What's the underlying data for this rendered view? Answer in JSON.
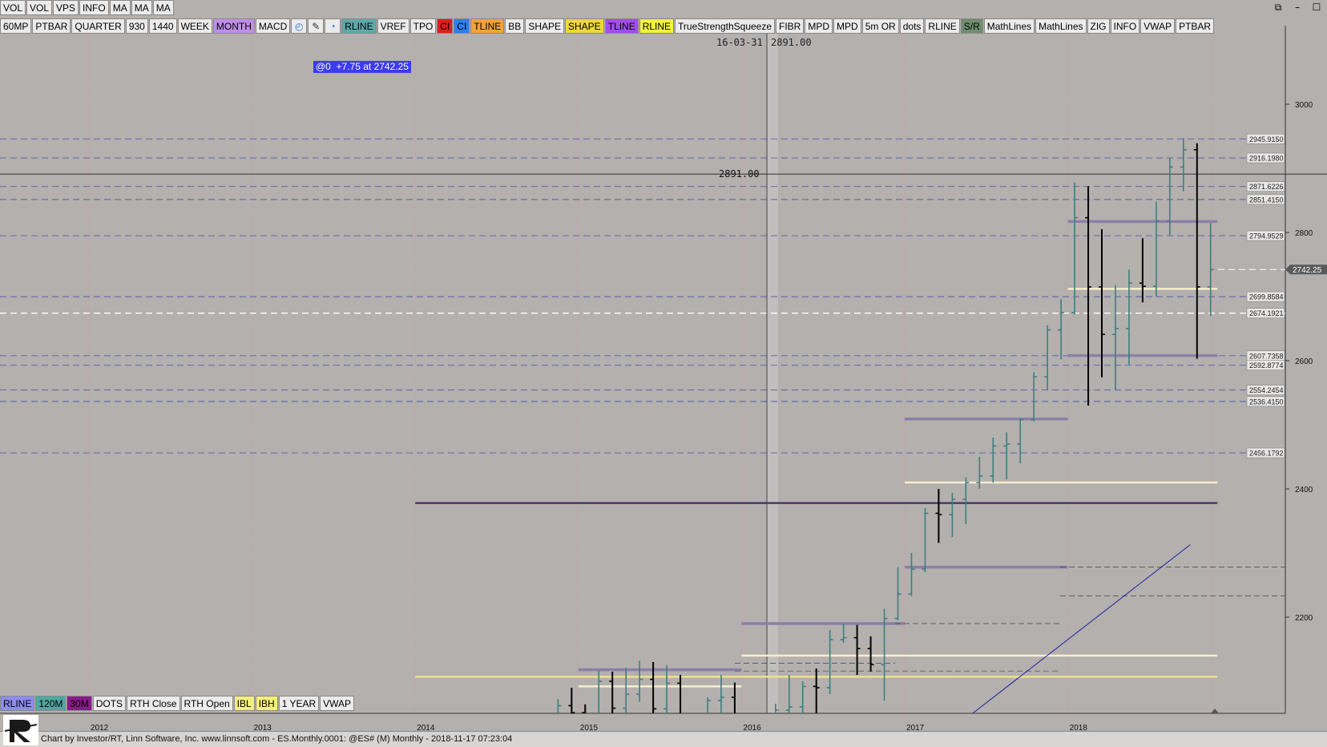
{
  "window": {
    "controls": [
      "restore-icon",
      "minimize-icon",
      "maximize-icon"
    ]
  },
  "toolbar_top": [
    "VOL",
    "VOL",
    "VPS",
    "INFO",
    "MA",
    "MA",
    "MA"
  ],
  "toolbar_row": [
    {
      "label": "60MP",
      "bg": "#ebebeb",
      "fg": "#000"
    },
    {
      "label": "PTBAR",
      "bg": "#ebebeb",
      "fg": "#000"
    },
    {
      "label": "QUARTER",
      "bg": "#ebebeb",
      "fg": "#000"
    },
    {
      "label": "930",
      "bg": "#ebebeb",
      "fg": "#000"
    },
    {
      "label": "1440",
      "bg": "#ebebeb",
      "fg": "#000"
    },
    {
      "label": "WEEK",
      "bg": "#ebebeb",
      "fg": "#000"
    },
    {
      "label": "MONTH",
      "bg": "#c08ee8",
      "fg": "#000"
    },
    {
      "label": "MACD",
      "bg": "#ebebeb",
      "fg": "#000"
    },
    {
      "label": "",
      "icon": "clock-icon",
      "bg": "#ebebeb",
      "fg": "#1e6fd0"
    },
    {
      "label": "",
      "icon": "pencil-icon",
      "bg": "#ebebeb",
      "fg": "#333"
    },
    {
      "label": "",
      "icon": "refresh-icon",
      "bg": "#ebebeb",
      "fg": "#1e6fd0"
    },
    {
      "label": "RLINE",
      "bg": "#5fa8a8",
      "fg": "#000"
    },
    {
      "label": "VREF",
      "bg": "#ebebeb",
      "fg": "#000"
    },
    {
      "label": "TPO",
      "bg": "#ebebeb",
      "fg": "#000"
    },
    {
      "label": "CI",
      "bg": "#e31b1b",
      "fg": "#000"
    },
    {
      "label": "CI",
      "bg": "#2d7ff0",
      "fg": "#000"
    },
    {
      "label": "TLINE",
      "bg": "#f2a43a",
      "fg": "#000"
    },
    {
      "label": "BB",
      "bg": "#ebebeb",
      "fg": "#000"
    },
    {
      "label": "SHAPE",
      "bg": "#ebebeb",
      "fg": "#000"
    },
    {
      "label": "SHAPE",
      "bg": "#f1d73c",
      "fg": "#000"
    },
    {
      "label": "TLINE",
      "bg": "#a24cf0",
      "fg": "#000"
    },
    {
      "label": "RLINE",
      "bg": "#f4f43c",
      "fg": "#000"
    },
    {
      "label": "TrueStrengthSqueeze",
      "bg": "#ebebeb",
      "fg": "#000"
    },
    {
      "label": "FIBR",
      "bg": "#ebebeb",
      "fg": "#000"
    },
    {
      "label": "MPD",
      "bg": "#ebebeb",
      "fg": "#000"
    },
    {
      "label": "MPD",
      "bg": "#ebebeb",
      "fg": "#000"
    },
    {
      "label": "5m OR",
      "bg": "#ebebeb",
      "fg": "#000"
    },
    {
      "label": "dots",
      "bg": "#ebebeb",
      "fg": "#000"
    },
    {
      "label": "RLINE",
      "bg": "#ebebeb",
      "fg": "#000"
    },
    {
      "label": "S/R",
      "bg": "#6f8e6f",
      "fg": "#000"
    },
    {
      "label": "MathLines",
      "bg": "#ebebeb",
      "fg": "#000"
    },
    {
      "label": "MathLines",
      "bg": "#ebebeb",
      "fg": "#000"
    },
    {
      "label": "ZIG",
      "bg": "#ebebeb",
      "fg": "#000"
    },
    {
      "label": "INFO",
      "bg": "#ebebeb",
      "fg": "#000"
    },
    {
      "label": "VWAP",
      "bg": "#ebebeb",
      "fg": "#000"
    },
    {
      "label": "PTBAR",
      "bg": "#ebebeb",
      "fg": "#000"
    }
  ],
  "toolbar_bottom": [
    {
      "label": "RLINE",
      "bg": "#8c8cf0",
      "fg": "#000"
    },
    {
      "label": "120M",
      "bg": "#4fa8a0",
      "fg": "#000"
    },
    {
      "label": "30M",
      "bg": "#8a1a8a",
      "fg": "#000"
    },
    {
      "label": "DOTS",
      "bg": "#ebebeb",
      "fg": "#000"
    },
    {
      "label": "RTH Close",
      "bg": "#ebebeb",
      "fg": "#000"
    },
    {
      "label": "RTH Open",
      "bg": "#ebebeb",
      "fg": "#000"
    },
    {
      "label": "IBL",
      "bg": "#f4f07c",
      "fg": "#000"
    },
    {
      "label": "IBH",
      "bg": "#f4f07c",
      "fg": "#000"
    },
    {
      "label": "1 YEAR",
      "bg": "#ebebeb",
      "fg": "#000"
    },
    {
      "label": "VWAP",
      "bg": "#ebebeb",
      "fg": "#000"
    }
  ],
  "badge": "@0  +7.75 at 2742.25",
  "crosshair": {
    "date": "16-03-31",
    "price": "2891.00",
    "price_label": "2891.00"
  },
  "footer": "Chart by Investor/RT, Linn Software, Inc. www.linnsoft.com - ES.Monthly.0001: @ES# (M) Monthly - 2018-11-17 07:23:04",
  "chart_data": {
    "type": "bar",
    "symbol": "@ES# (M) Monthly",
    "ylim": [
      2050,
      3110
    ],
    "y_ticks": [
      2200,
      2400,
      2600,
      2800,
      3000
    ],
    "x_ticks": [
      "2012",
      "2013",
      "2014",
      "2015",
      "2016",
      "2017",
      "2018"
    ],
    "last_price": "2742.25",
    "level_labels": [
      "2945.9150",
      "2916.1980",
      "2871.6226",
      "2851.4150",
      "2794.9529",
      "2699.8584",
      "2674.1921",
      "2607.7358",
      "2592.8774",
      "2554.2454",
      "2536.4150",
      "2456.1792"
    ],
    "colors": {
      "up_bar": "#3f7f7f",
      "down_bar": "#000000",
      "purple_level": "#8b7fa8",
      "cream_level": "#f4ecc4",
      "yellow_level": "#f0e08c",
      "dark_line": "#4a3a6a",
      "trend_line": "#2020a0"
    },
    "bars": [
      {
        "date": "2014-11",
        "open": 2015,
        "high": 2072,
        "low": 1980,
        "close": 2062
      },
      {
        "date": "2014-12",
        "open": 2062,
        "high": 2090,
        "low": 1970,
        "close": 2051
      },
      {
        "date": "2015-01",
        "open": 2051,
        "high": 2064,
        "low": 1981,
        "close": 1991
      },
      {
        "date": "2015-02",
        "open": 1991,
        "high": 2117,
        "low": 1981,
        "close": 2100
      },
      {
        "date": "2015-03",
        "open": 2100,
        "high": 2115,
        "low": 2040,
        "close": 2058
      },
      {
        "date": "2015-04",
        "open": 2058,
        "high": 2121,
        "low": 2040,
        "close": 2080
      },
      {
        "date": "2015-05",
        "open": 2080,
        "high": 2132,
        "low": 2068,
        "close": 2103
      },
      {
        "date": "2015-06",
        "open": 2103,
        "high": 2130,
        "low": 2050,
        "close": 2057
      },
      {
        "date": "2015-07",
        "open": 2057,
        "high": 2125,
        "low": 2040,
        "close": 2097
      },
      {
        "date": "2015-08",
        "open": 2097,
        "high": 2110,
        "low": 1860,
        "close": 1968
      },
      {
        "date": "2015-09",
        "open": 1968,
        "high": 2005,
        "low": 1860,
        "close": 1908
      },
      {
        "date": "2015-10",
        "open": 1908,
        "high": 2075,
        "low": 1880,
        "close": 2070
      },
      {
        "date": "2015-11",
        "open": 2070,
        "high": 2110,
        "low": 2040,
        "close": 2075
      },
      {
        "date": "2015-12",
        "open": 2075,
        "high": 2098,
        "low": 1990,
        "close": 2035
      },
      {
        "date": "2016-01",
        "open": 2035,
        "high": 2040,
        "low": 1805,
        "close": 1935
      },
      {
        "date": "2016-02",
        "open": 1935,
        "high": 1960,
        "low": 1800,
        "close": 1930
      },
      {
        "date": "2016-03",
        "open": 1930,
        "high": 2065,
        "low": 1925,
        "close": 2055
      },
      {
        "date": "2016-04",
        "open": 2055,
        "high": 2110,
        "low": 2030,
        "close": 2060
      },
      {
        "date": "2016-05",
        "open": 2060,
        "high": 2100,
        "low": 2025,
        "close": 2092
      },
      {
        "date": "2016-06",
        "open": 2092,
        "high": 2120,
        "low": 1990,
        "close": 2090
      },
      {
        "date": "2016-07",
        "open": 2090,
        "high": 2180,
        "low": 2080,
        "close": 2165
      },
      {
        "date": "2016-08",
        "open": 2165,
        "high": 2190,
        "low": 2160,
        "close": 2168
      },
      {
        "date": "2016-09",
        "open": 2168,
        "high": 2188,
        "low": 2110,
        "close": 2151
      },
      {
        "date": "2016-10",
        "open": 2151,
        "high": 2170,
        "low": 2115,
        "close": 2126
      },
      {
        "date": "2016-11",
        "open": 2126,
        "high": 2213,
        "low": 2070,
        "close": 2198
      },
      {
        "date": "2016-12",
        "open": 2198,
        "high": 2278,
        "low": 2195,
        "close": 2236
      },
      {
        "date": "2017-01",
        "open": 2236,
        "high": 2300,
        "low": 2233,
        "close": 2275
      },
      {
        "date": "2017-02",
        "open": 2275,
        "high": 2370,
        "low": 2270,
        "close": 2362
      },
      {
        "date": "2017-03",
        "open": 2362,
        "high": 2400,
        "low": 2316,
        "close": 2360
      },
      {
        "date": "2017-04",
        "open": 2360,
        "high": 2394,
        "low": 2325,
        "close": 2384
      },
      {
        "date": "2017-05",
        "open": 2384,
        "high": 2418,
        "low": 2345,
        "close": 2410
      },
      {
        "date": "2017-06",
        "open": 2410,
        "high": 2450,
        "low": 2400,
        "close": 2420
      },
      {
        "date": "2017-07",
        "open": 2420,
        "high": 2480,
        "low": 2410,
        "close": 2467
      },
      {
        "date": "2017-08",
        "open": 2467,
        "high": 2488,
        "low": 2415,
        "close": 2470
      },
      {
        "date": "2017-09",
        "open": 2470,
        "high": 2510,
        "low": 2440,
        "close": 2508
      },
      {
        "date": "2017-10",
        "open": 2508,
        "high": 2582,
        "low": 2505,
        "close": 2575
      },
      {
        "date": "2017-11",
        "open": 2575,
        "high": 2655,
        "low": 2555,
        "close": 2648
      },
      {
        "date": "2017-12",
        "open": 2648,
        "high": 2696,
        "low": 2602,
        "close": 2675
      },
      {
        "date": "2018-01",
        "open": 2675,
        "high": 2878,
        "low": 2672,
        "close": 2823
      },
      {
        "date": "2018-02",
        "open": 2823,
        "high": 2872,
        "low": 2530,
        "close": 2715
      },
      {
        "date": "2018-03",
        "open": 2715,
        "high": 2805,
        "low": 2574,
        "close": 2641
      },
      {
        "date": "2018-04",
        "open": 2641,
        "high": 2718,
        "low": 2554,
        "close": 2650
      },
      {
        "date": "2018-05",
        "open": 2650,
        "high": 2742,
        "low": 2594,
        "close": 2721
      },
      {
        "date": "2018-06",
        "open": 2721,
        "high": 2791,
        "low": 2691,
        "close": 2716
      },
      {
        "date": "2018-07",
        "open": 2716,
        "high": 2848,
        "low": 2700,
        "close": 2818
      },
      {
        "date": "2018-08",
        "open": 2818,
        "high": 2917,
        "low": 2796,
        "close": 2902
      },
      {
        "date": "2018-09",
        "open": 2902,
        "high": 2947,
        "low": 2864,
        "close": 2929
      },
      {
        "date": "2018-10",
        "open": 2929,
        "high": 2939,
        "low": 2603,
        "close": 2715
      },
      {
        "date": "2018-11",
        "open": 2715,
        "high": 2815,
        "low": 2670,
        "close": 2742
      }
    ],
    "levels": [
      {
        "price": 2945.915,
        "style": "dash",
        "color": "#5a5aa8"
      },
      {
        "price": 2916.198,
        "style": "dash",
        "color": "#5a5aa8"
      },
      {
        "price": 2871.6226,
        "style": "dash",
        "color": "#5a5aa8"
      },
      {
        "price": 2851.415,
        "style": "dash",
        "color": "#5a5aa8"
      },
      {
        "price": 2794.9529,
        "style": "dash",
        "color": "#5a5aa8"
      },
      {
        "price": 2699.8584,
        "style": "dash",
        "color": "#5a5aa8"
      },
      {
        "price": 2674.1921,
        "style": "dash",
        "color": "#ffffff"
      },
      {
        "price": 2607.7358,
        "style": "dash",
        "color": "#5a5aa8"
      },
      {
        "price": 2592.8774,
        "style": "dash",
        "color": "#5a5aa8"
      },
      {
        "price": 2554.2454,
        "style": "dash",
        "color": "#5a5aa8"
      },
      {
        "price": 2536.415,
        "style": "dash",
        "color": "#5a5aa8"
      },
      {
        "price": 2456.1792,
        "style": "dash",
        "color": "#5a5aa8"
      }
    ],
    "segments": [
      {
        "from": "2018-01",
        "to": "2018-12",
        "price": 2817,
        "kind": "purple"
      },
      {
        "from": "2018-01",
        "to": "2018-12",
        "price": 2712,
        "kind": "cream"
      },
      {
        "from": "2018-01",
        "to": "2018-12",
        "price": 2608,
        "kind": "purple"
      },
      {
        "from": "2017-01",
        "to": "2018-01",
        "price": 2509,
        "kind": "purple"
      },
      {
        "from": "2017-01",
        "to": "2018-12",
        "price": 2410,
        "kind": "cream"
      },
      {
        "from": "2014-01",
        "to": "2018-12",
        "price": 2378,
        "kind": "dark"
      },
      {
        "from": "2017-01",
        "to": "2018-01",
        "price": 2278,
        "kind": "purple"
      },
      {
        "from": "2016-01",
        "to": "2017-01",
        "price": 2190,
        "kind": "purple"
      },
      {
        "from": "2016-01",
        "to": "2018-12",
        "price": 2140,
        "kind": "cream"
      },
      {
        "from": "2015-01",
        "to": "2016-01",
        "price": 2118,
        "kind": "purple"
      },
      {
        "from": "2015-01",
        "to": "2016-01",
        "price": 2092,
        "kind": "cream"
      },
      {
        "from": "2014-01",
        "to": "2018-12",
        "price": 2107,
        "kind": "yellow"
      }
    ],
    "trend_line": [
      {
        "date": "2017-06",
        "price": 2050
      },
      {
        "date": "2018-10",
        "price": 2313
      }
    ]
  }
}
